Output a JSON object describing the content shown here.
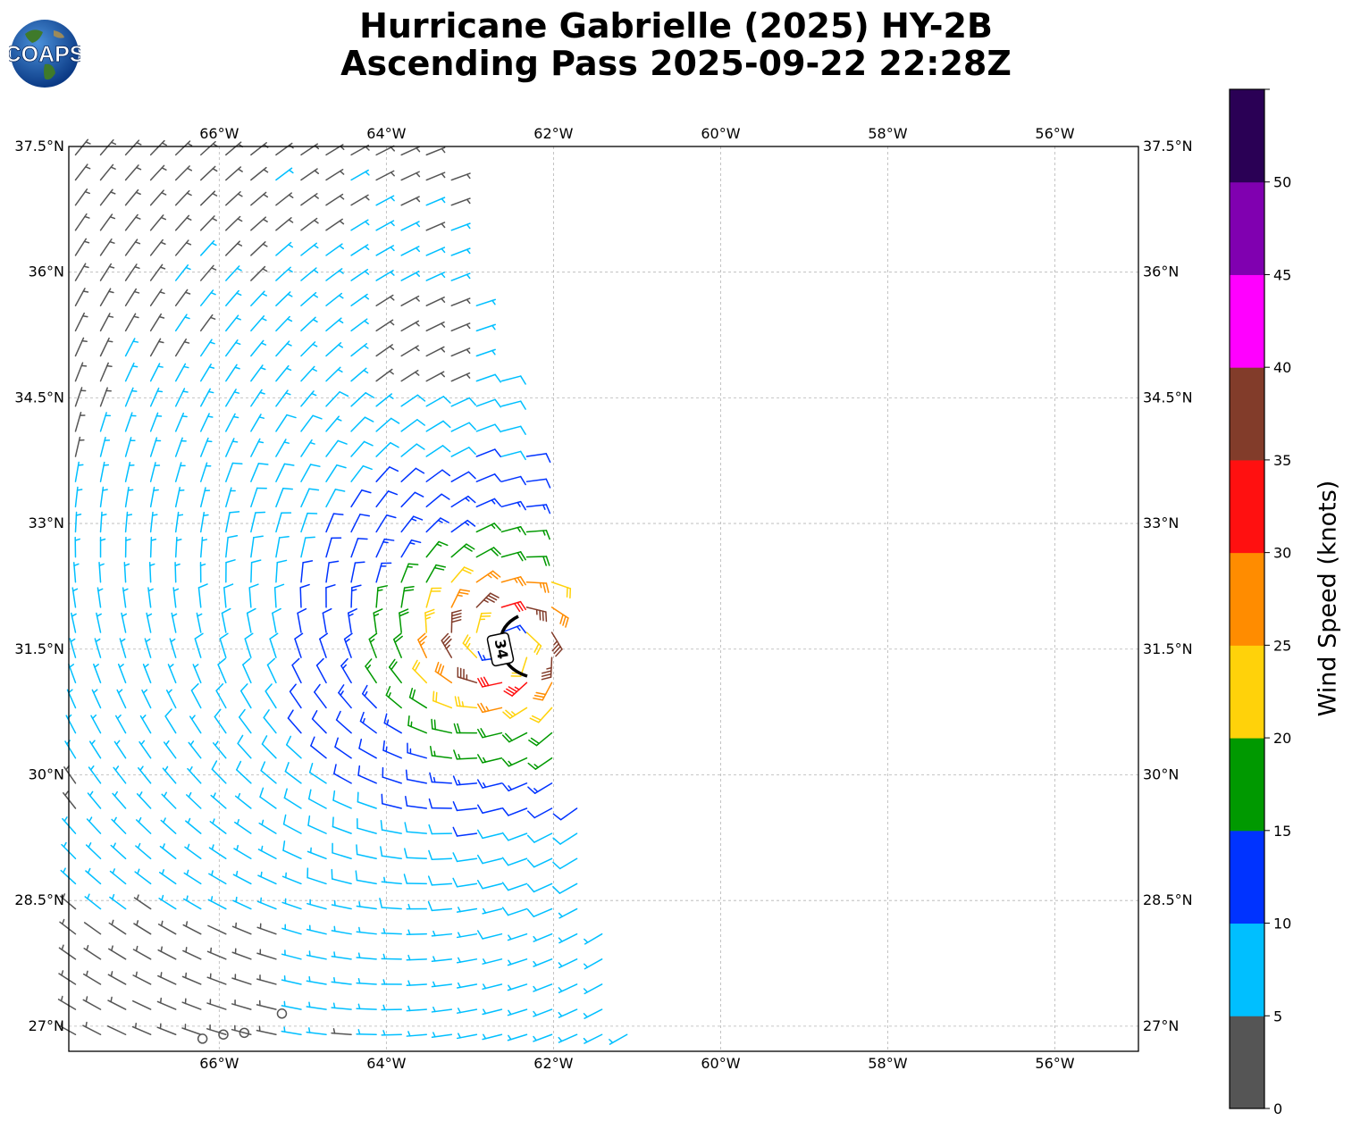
{
  "header": {
    "title_line1": "Hurricane Gabrielle (2025) HY-2B",
    "title_line2": "Ascending Pass 2025-09-22 22:28Z",
    "logo_text": "COAPS"
  },
  "map": {
    "lon_range": [
      -67.8,
      -55.0
    ],
    "lat_range": [
      26.7,
      37.5
    ],
    "lon_ticks": [
      {
        "value": -66,
        "label": "66°W"
      },
      {
        "value": -64,
        "label": "64°W"
      },
      {
        "value": -62,
        "label": "62°W"
      },
      {
        "value": -60,
        "label": "60°W"
      },
      {
        "value": -58,
        "label": "58°W"
      },
      {
        "value": -56,
        "label": "56°W"
      }
    ],
    "lat_ticks": [
      {
        "value": 37.5,
        "label": "37.5°N"
      },
      {
        "value": 36,
        "label": "36°N"
      },
      {
        "value": 34.5,
        "label": "34.5°N"
      },
      {
        "value": 33,
        "label": "33°N"
      },
      {
        "value": 31.5,
        "label": "31.5°N"
      },
      {
        "value": 30,
        "label": "30°N"
      },
      {
        "value": 28.5,
        "label": "28.5°N"
      },
      {
        "value": 27,
        "label": "27°N"
      }
    ],
    "grid": true,
    "storm_center": {
      "lon": -62.6,
      "lat": 31.55
    },
    "contour_label": "34",
    "swath_east_edge": [
      {
        "lat": 37.5,
        "lon": -63.3
      },
      {
        "lat": 36.0,
        "lon": -63.0
      },
      {
        "lat": 34.5,
        "lon": -62.45
      },
      {
        "lat": 33.0,
        "lon": -62.1
      },
      {
        "lat": 31.5,
        "lon": -61.9
      },
      {
        "lat": 30.0,
        "lon": -61.75
      },
      {
        "lat": 28.5,
        "lon": -61.5
      },
      {
        "lat": 27.0,
        "lon": -61.1
      }
    ]
  },
  "colorbar": {
    "label": "Wind Speed (knots)",
    "bins": [
      {
        "min": 0,
        "max": 5,
        "color": "#555555"
      },
      {
        "min": 5,
        "max": 10,
        "color": "#00bfff"
      },
      {
        "min": 10,
        "max": 15,
        "color": "#0033ff"
      },
      {
        "min": 15,
        "max": 20,
        "color": "#009900"
      },
      {
        "min": 20,
        "max": 25,
        "color": "#ffd20a"
      },
      {
        "min": 25,
        "max": 30,
        "color": "#ff8c00"
      },
      {
        "min": 30,
        "max": 35,
        "color": "#ff1010"
      },
      {
        "min": 35,
        "max": 40,
        "color": "#823c2a"
      },
      {
        "min": 40,
        "max": 45,
        "color": "#ff00ff"
      },
      {
        "min": 45,
        "max": 50,
        "color": "#8000b0"
      },
      {
        "min": 50,
        "max": 55,
        "color": "#2a0055"
      }
    ],
    "tick_labels": [
      "0",
      "5",
      "10",
      "15",
      "20",
      "25",
      "30",
      "35",
      "40",
      "45",
      "50"
    ]
  }
}
